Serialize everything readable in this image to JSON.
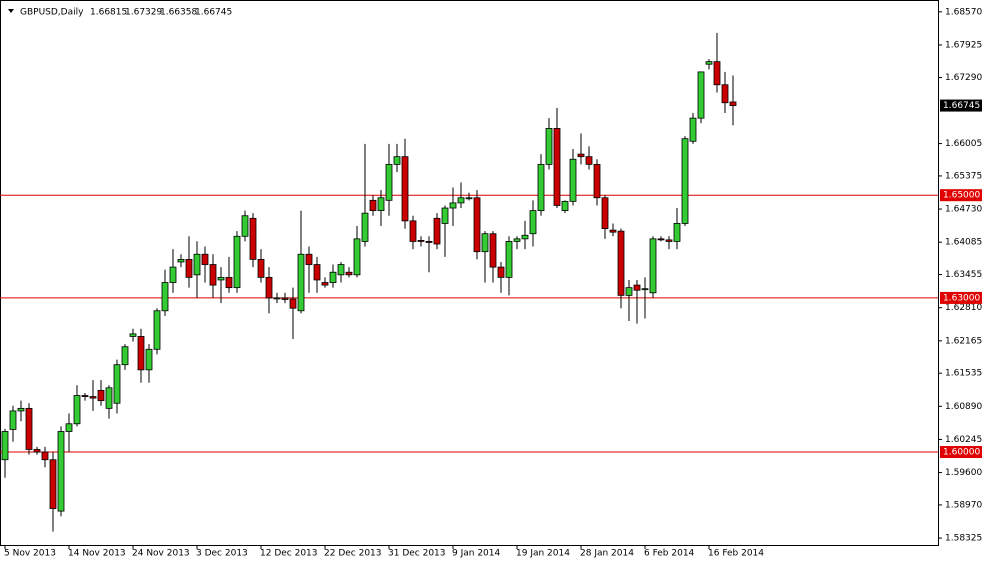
{
  "chart_data": {
    "type": "candlestick",
    "title": "GBPUSD,Daily",
    "categories": [
      "5 Nov 2013",
      null,
      null,
      null,
      null,
      null,
      null,
      null,
      "14 Nov 2013",
      null,
      null,
      null,
      null,
      null,
      null,
      null,
      "24 Nov 2013",
      null,
      null,
      null,
      null,
      null,
      null,
      null,
      "3 Dec 2013",
      null,
      null,
      null,
      null,
      null,
      null,
      null,
      "12 Dec 2013",
      null,
      null,
      null,
      null,
      null,
      null,
      null,
      "22 Dec 2013",
      null,
      null,
      null,
      null,
      null,
      null,
      null,
      "31 Dec 2013",
      null,
      null,
      null,
      null,
      null,
      null,
      null,
      "9 Jan 2014",
      null,
      null,
      null,
      null,
      null,
      null,
      null,
      "19 Jan 2014",
      null,
      null,
      null,
      null,
      null,
      null,
      null,
      "28 Jan 2014",
      null,
      null,
      null,
      null,
      null,
      null,
      null,
      "6 Feb 2014",
      null,
      null,
      null,
      null,
      null,
      null,
      null,
      "16 Feb 2014",
      null,
      null,
      null
    ],
    "open": [
      1.5985,
      1.6044,
      1.608,
      1.6085,
      1.6005,
      1.6,
      1.5985,
      1.5885,
      1.604,
      1.6055,
      1.611,
      1.6108,
      1.612,
      1.6085,
      1.6095,
      1.617,
      1.6225,
      1.6225,
      1.616,
      1.62,
      1.6275,
      1.633,
      1.637,
      1.6375,
      1.6345,
      1.6385,
      1.6365,
      1.6335,
      1.634,
      1.632,
      1.642,
      1.6455,
      1.6375,
      1.634,
      1.63,
      1.63,
      1.6298,
      1.6275,
      1.6385,
      1.6365,
      1.633,
      1.633,
      1.6345,
      1.635,
      1.6345,
      1.641,
      1.649,
      1.647,
      1.649,
      1.656,
      1.6575,
      1.645,
      1.6412,
      1.641,
      1.6455,
      1.6445,
      1.6475,
      1.6485,
      1.6495,
      1.6495,
      1.639,
      1.6425,
      1.636,
      1.634,
      1.641,
      1.6415,
      1.6425,
      1.647,
      1.656,
      1.663,
      1.647,
      1.6488,
      1.658,
      1.6575,
      1.656,
      1.6495,
      1.6432,
      1.643,
      1.6305,
      1.6325,
      1.6316,
      1.631,
      1.6415,
      1.6413,
      1.641,
      1.6445,
      1.6605,
      1.665,
      1.6755,
      1.676,
      1.6715,
      1.66815
    ],
    "high": [
      1.6045,
      1.609,
      1.61,
      1.6095,
      1.601,
      1.601,
      1.6,
      1.605,
      1.6075,
      1.613,
      1.6115,
      1.614,
      1.614,
      1.613,
      1.618,
      1.621,
      1.624,
      1.624,
      1.621,
      1.628,
      1.6355,
      1.6395,
      1.6385,
      1.642,
      1.641,
      1.64,
      1.6385,
      1.636,
      1.638,
      1.643,
      1.647,
      1.6465,
      1.6395,
      1.636,
      1.631,
      1.631,
      1.632,
      1.647,
      1.64,
      1.638,
      1.634,
      1.6365,
      1.637,
      1.636,
      1.644,
      1.66,
      1.65,
      1.651,
      1.66,
      1.66,
      1.661,
      1.646,
      1.642,
      1.642,
      1.6465,
      1.648,
      1.6515,
      1.6525,
      1.6505,
      1.651,
      1.643,
      1.643,
      1.637,
      1.642,
      1.642,
      1.645,
      1.649,
      1.658,
      1.665,
      1.667,
      1.649,
      1.659,
      1.662,
      1.6595,
      1.657,
      1.65,
      1.6445,
      1.6435,
      1.6335,
      1.6335,
      1.634,
      1.642,
      1.642,
      1.642,
      1.6475,
      1.6615,
      1.666,
      1.674,
      1.6765,
      1.6816,
      1.674,
      1.67329
    ],
    "low": [
      1.595,
      1.602,
      1.606,
      1.5995,
      1.5995,
      1.597,
      1.5845,
      1.5875,
      1.6,
      1.605,
      1.61,
      1.608,
      1.609,
      1.6065,
      1.6075,
      1.616,
      1.6215,
      1.6135,
      1.6135,
      1.619,
      1.6265,
      1.631,
      1.636,
      1.632,
      1.63,
      1.633,
      1.63,
      1.629,
      1.631,
      1.631,
      1.641,
      1.636,
      1.633,
      1.627,
      1.629,
      1.629,
      1.622,
      1.627,
      1.631,
      1.631,
      1.632,
      1.632,
      1.633,
      1.634,
      1.634,
      1.64,
      1.646,
      1.644,
      1.646,
      1.6545,
      1.6435,
      1.6395,
      1.64,
      1.635,
      1.6395,
      1.638,
      1.644,
      1.6475,
      1.649,
      1.6375,
      1.633,
      1.633,
      1.631,
      1.6305,
      1.6395,
      1.6395,
      1.64,
      1.646,
      1.655,
      1.6475,
      1.6465,
      1.648,
      1.656,
      1.655,
      1.648,
      1.6415,
      1.642,
      1.628,
      1.6255,
      1.625,
      1.626,
      1.63,
      1.641,
      1.6395,
      1.6395,
      1.644,
      1.66,
      1.664,
      1.6745,
      1.67,
      1.666,
      1.66358
    ],
    "close": [
      1.604,
      1.608,
      1.6085,
      1.6005,
      1.6,
      1.5985,
      1.589,
      1.604,
      1.6055,
      1.611,
      1.6108,
      1.6105,
      1.61,
      1.6125,
      1.617,
      1.6205,
      1.623,
      1.616,
      1.62,
      1.6275,
      1.633,
      1.636,
      1.6375,
      1.634,
      1.6385,
      1.6365,
      1.6325,
      1.634,
      1.632,
      1.642,
      1.646,
      1.6375,
      1.634,
      1.63,
      1.63,
      1.6297,
      1.628,
      1.6385,
      1.6365,
      1.6335,
      1.6325,
      1.635,
      1.6365,
      1.6345,
      1.6415,
      1.6465,
      1.647,
      1.6495,
      1.656,
      1.6575,
      1.645,
      1.641,
      1.641,
      1.6408,
      1.6405,
      1.6475,
      1.6485,
      1.6495,
      1.6495,
      1.639,
      1.6425,
      1.636,
      1.634,
      1.641,
      1.6415,
      1.6422,
      1.647,
      1.656,
      1.663,
      1.648,
      1.6488,
      1.657,
      1.6575,
      1.656,
      1.6495,
      1.6435,
      1.6428,
      1.6305,
      1.632,
      1.6315,
      1.6318,
      1.6415,
      1.6414,
      1.641,
      1.6445,
      1.661,
      1.665,
      1.674,
      1.676,
      1.6715,
      1.668,
      1.66745
    ],
    "up_color": "#33cc33",
    "down_color": "#cc0000",
    "hline_color": "#e00000",
    "hlines": [
      {
        "value": 1.65,
        "label": "1.65000"
      },
      {
        "value": 1.63,
        "label": "1.63000"
      },
      {
        "value": 1.6,
        "label": "1.60000"
      }
    ],
    "ylim": [
      1.5819,
      1.688
    ],
    "yticks": [
      {
        "value": 1.6857,
        "label": "1.68570"
      },
      {
        "value": 1.67925,
        "label": "1.67925"
      },
      {
        "value": 1.6729,
        "label": "1.67290"
      },
      {
        "value": 1.66005,
        "label": "1.66005"
      },
      {
        "value": 1.65375,
        "label": "1.65375"
      },
      {
        "value": 1.6473,
        "label": "1.64730"
      },
      {
        "value": 1.64085,
        "label": "1.64085"
      },
      {
        "value": 1.63455,
        "label": "1.63455"
      },
      {
        "value": 1.6281,
        "label": "1.62810"
      },
      {
        "value": 1.62165,
        "label": "1.62165"
      },
      {
        "value": 1.61535,
        "label": "1.61535"
      },
      {
        "value": 1.6089,
        "label": "1.60890"
      },
      {
        "value": 1.60245,
        "label": "1.60245"
      },
      {
        "value": 1.596,
        "label": "1.59600"
      },
      {
        "value": 1.5897,
        "label": "1.58970"
      },
      {
        "value": 1.58325,
        "label": "1.58325"
      }
    ]
  }
}
